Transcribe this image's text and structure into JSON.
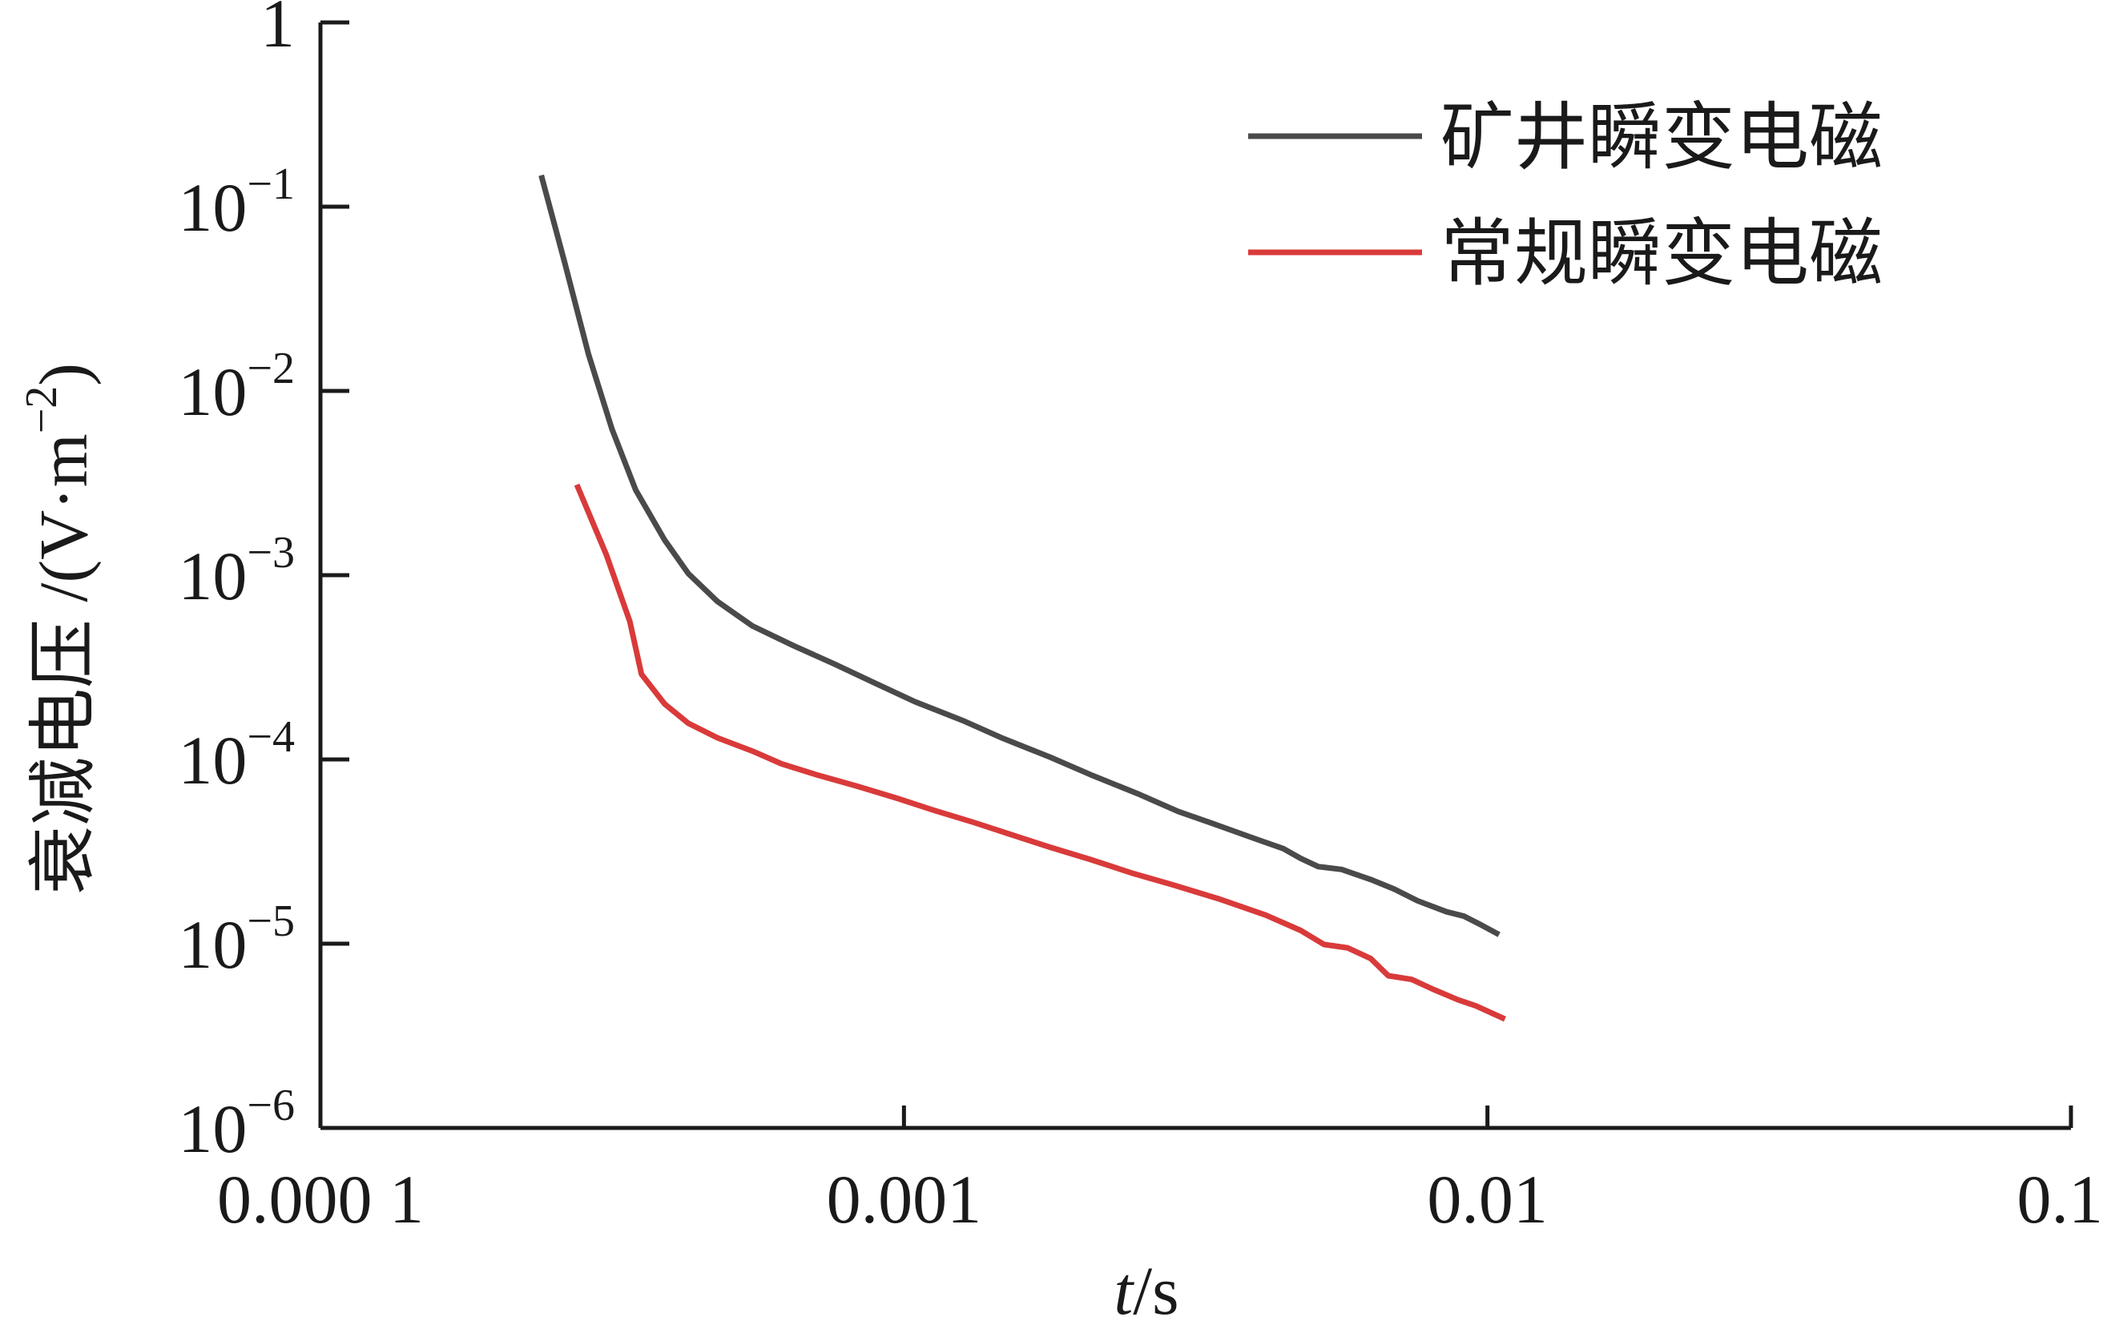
{
  "chart_data": {
    "type": "line",
    "xlabel": {
      "italic": "t",
      "rest": "/s"
    },
    "ylabel": "衰减电压 /(V·m⁻²)",
    "ylabel_text": "衰减电压 /(V·m",
    "ylabel_exp": "−2",
    "ylabel_close": ")",
    "x_scale": "log",
    "y_scale": "log",
    "xlim": [
      0.0001,
      0.1
    ],
    "ylim": [
      1e-06,
      1
    ],
    "x_ticks": [
      {
        "value": 0.0001,
        "label": "0.000 1"
      },
      {
        "value": 0.001,
        "label": "0.001"
      },
      {
        "value": 0.01,
        "label": "0.01"
      },
      {
        "value": 0.1,
        "label": "0.1"
      }
    ],
    "y_ticks": [
      {
        "value": 1,
        "base": "1",
        "exp": ""
      },
      {
        "value": 0.1,
        "base": "10",
        "exp": "−1"
      },
      {
        "value": 0.01,
        "base": "10",
        "exp": "−2"
      },
      {
        "value": 0.001,
        "base": "10",
        "exp": "−3"
      },
      {
        "value": 0.0001,
        "base": "10",
        "exp": "−4"
      },
      {
        "value": 1e-05,
        "base": "10",
        "exp": "−5"
      },
      {
        "value": 1e-06,
        "base": "10",
        "exp": "−6"
      }
    ],
    "grid": false,
    "legend_position": "top-right",
    "series": [
      {
        "name": "矿井瞬变电磁",
        "color": "#4a4a4a",
        "points": [
          [
            0.000239,
            0.148
          ],
          [
            0.000262,
            0.05
          ],
          [
            0.000288,
            0.0158
          ],
          [
            0.000316,
            0.0062
          ],
          [
            0.000347,
            0.0029
          ],
          [
            0.000389,
            0.00155
          ],
          [
            0.000427,
            0.00102
          ],
          [
            0.000479,
            0.00072
          ],
          [
            0.00055,
            0.00053
          ],
          [
            0.000646,
            0.000415
          ],
          [
            0.000759,
            0.00033
          ],
          [
            0.000891,
            0.00026
          ],
          [
            0.001047,
            0.000205
          ],
          [
            0.001259,
            0.000163
          ],
          [
            0.001479,
            0.00013
          ],
          [
            0.001778,
            0.000103
          ],
          [
            0.002089,
            8.26e-05
          ],
          [
            0.002512,
            6.53e-05
          ],
          [
            0.002951,
            5.22e-05
          ],
          [
            0.003388,
            4.48e-05
          ],
          [
            0.003981,
            3.73e-05
          ],
          [
            0.004467,
            3.28e-05
          ],
          [
            0.004786,
            2.9e-05
          ],
          [
            0.005129,
            2.62e-05
          ],
          [
            0.005623,
            2.53e-05
          ],
          [
            0.00631,
            2.23e-05
          ],
          [
            0.006918,
            1.98e-05
          ],
          [
            0.007586,
            1.71e-05
          ],
          [
            0.008511,
            1.49e-05
          ],
          [
            0.00912,
            1.41e-05
          ],
          [
            0.009772,
            1.26e-05
          ],
          [
            0.010471,
            1.12e-05
          ]
        ]
      },
      {
        "name": "常规瞬变电磁",
        "color": "#d93a3a",
        "points": [
          [
            0.000275,
            0.0031
          ],
          [
            0.000309,
            0.00129
          ],
          [
            0.000339,
            0.00056
          ],
          [
            0.000355,
            0.00029
          ],
          [
            0.000389,
            0.0002
          ],
          [
            0.000427,
            0.000157
          ],
          [
            0.000479,
            0.000131
          ],
          [
            0.00055,
            0.000111
          ],
          [
            0.000617,
            9.46e-05
          ],
          [
            0.000708,
            8.26e-05
          ],
          [
            0.000832,
            7.15e-05
          ],
          [
            0.000977,
            6.13e-05
          ],
          [
            0.001122,
            5.31e-05
          ],
          [
            0.001318,
            4.55e-05
          ],
          [
            0.001514,
            3.94e-05
          ],
          [
            0.001778,
            3.34e-05
          ],
          [
            0.002089,
            2.86e-05
          ],
          [
            0.002455,
            2.42e-05
          ],
          [
            0.002884,
            2.09e-05
          ],
          [
            0.003467,
            1.75e-05
          ],
          [
            0.004169,
            1.43e-05
          ],
          [
            0.004786,
            1.18e-05
          ],
          [
            0.005248,
            9.9e-06
          ],
          [
            0.005754,
            9.5e-06
          ],
          [
            0.00631,
            8.3e-06
          ],
          [
            0.006761,
            6.7e-06
          ],
          [
            0.007413,
            6.4e-06
          ],
          [
            0.008128,
            5.6e-06
          ],
          [
            0.008913,
            4.95e-06
          ],
          [
            0.00955,
            4.6e-06
          ],
          [
            0.010715,
            3.9e-06
          ]
        ]
      }
    ]
  }
}
